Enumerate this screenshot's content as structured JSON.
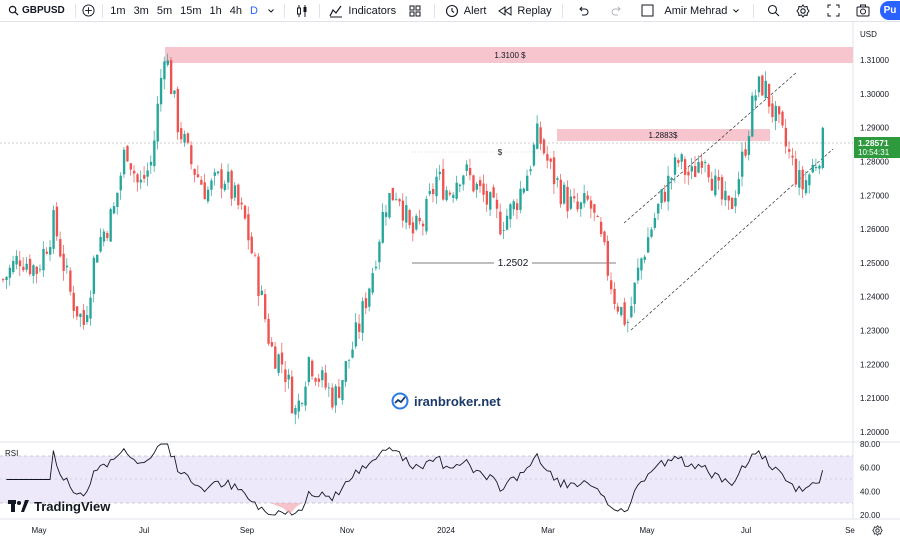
{
  "toolbar": {
    "symbol": "GBPUSD",
    "timeframes": [
      "1m",
      "3m",
      "5m",
      "15m",
      "1h",
      "4h",
      "D"
    ],
    "active_timeframe": "D",
    "indicators_label": "Indicators",
    "alert_label": "Alert",
    "replay_label": "Replay",
    "user_name": "Amir Mehrad",
    "publish_label": "Pu",
    "icons": [
      "plus-icon",
      "chevron-down-icon",
      "candles-icon",
      "indicators-icon",
      "grid-icon",
      "alert-icon",
      "replay-icon",
      "undo-icon",
      "redo-icon",
      "square-icon",
      "search-zoom-icon",
      "gear-icon",
      "fullscreen-icon",
      "camera-icon"
    ]
  },
  "price_axis": {
    "currency": "USD",
    "ticks": [
      "1.31000",
      "1.30000",
      "1.29000",
      "1.28000",
      "1.27000",
      "1.26000",
      "1.25000",
      "1.24000",
      "1.23000",
      "1.22000",
      "1.21000",
      "1.20000"
    ]
  },
  "current_price": {
    "value": "1.28571",
    "countdown": "10:54:31"
  },
  "zones": [
    {
      "label": "1.3100 $",
      "price_low": 1.308,
      "price_high": 1.3125
    },
    {
      "label": "1.2883$",
      "price_low": 1.2865,
      "price_high": 1.29
    }
  ],
  "level_line": {
    "label": "1.2502",
    "price": 1.2502,
    "marker": "$"
  },
  "rsi": {
    "label": "RSI",
    "ticks": [
      "80.00",
      "60.00",
      "40.00",
      "20.00"
    ],
    "band_upper": 70,
    "band_lower": 30
  },
  "time_axis": {
    "labels": [
      "May",
      "Jul",
      "Sep",
      "Nov",
      "2024",
      "Mar",
      "May",
      "Jul",
      "Se"
    ]
  },
  "watermark": "iranbroker.net",
  "brand": "TradingView",
  "colors": {
    "up": "#26a69a",
    "down": "#ef5350",
    "zone": "#f7c5cd",
    "price_tag": "#2e9a3e",
    "accent": "#2962ff",
    "rsi_line": "#131722",
    "rsi_band": "#ede9fa"
  },
  "chart_data": {
    "type": "candlestick",
    "symbol": "GBPUSD",
    "ylim": [
      1.195,
      1.318
    ],
    "close_path": [
      [
        0,
        1.245
      ],
      [
        0.02,
        1.252
      ],
      [
        0.04,
        1.248
      ],
      [
        0.06,
        1.262
      ],
      [
        0.08,
        1.24
      ],
      [
        0.095,
        1.232
      ],
      [
        0.11,
        1.255
      ],
      [
        0.13,
        1.265
      ],
      [
        0.145,
        1.285
      ],
      [
        0.16,
        1.272
      ],
      [
        0.175,
        1.28
      ],
      [
        0.19,
        1.314
      ],
      [
        0.205,
        1.292
      ],
      [
        0.22,
        1.28
      ],
      [
        0.24,
        1.271
      ],
      [
        0.26,
        1.276
      ],
      [
        0.285,
        1.262
      ],
      [
        0.3,
        1.245
      ],
      [
        0.315,
        1.225
      ],
      [
        0.33,
        1.22
      ],
      [
        0.345,
        1.205
      ],
      [
        0.36,
        1.222
      ],
      [
        0.375,
        1.215
      ],
      [
        0.39,
        1.21
      ],
      [
        0.405,
        1.22
      ],
      [
        0.42,
        1.232
      ],
      [
        0.435,
        1.248
      ],
      [
        0.45,
        1.268
      ],
      [
        0.465,
        1.272
      ],
      [
        0.48,
        1.258
      ],
      [
        0.495,
        1.262
      ],
      [
        0.51,
        1.275
      ],
      [
        0.525,
        1.271
      ],
      [
        0.54,
        1.278
      ],
      [
        0.555,
        1.273
      ],
      [
        0.57,
        1.268
      ],
      [
        0.585,
        1.262
      ],
      [
        0.6,
        1.266
      ],
      [
        0.615,
        1.275
      ],
      [
        0.63,
        1.288
      ],
      [
        0.645,
        1.277
      ],
      [
        0.66,
        1.27
      ],
      [
        0.675,
        1.265
      ],
      [
        0.69,
        1.268
      ],
      [
        0.705,
        1.255
      ],
      [
        0.72,
        1.24
      ],
      [
        0.735,
        1.232
      ],
      [
        0.75,
        1.25
      ],
      [
        0.765,
        1.262
      ],
      [
        0.78,
        1.272
      ],
      [
        0.795,
        1.28
      ],
      [
        0.81,
        1.275
      ],
      [
        0.825,
        1.284
      ],
      [
        0.84,
        1.271
      ],
      [
        0.855,
        1.265
      ],
      [
        0.87,
        1.28
      ],
      [
        0.885,
        1.3
      ],
      [
        0.895,
        1.303
      ],
      [
        0.91,
        1.292
      ],
      [
        0.925,
        1.282
      ],
      [
        0.94,
        1.272
      ],
      [
        0.955,
        1.279
      ],
      [
        0.965,
        1.2857
      ]
    ]
  }
}
